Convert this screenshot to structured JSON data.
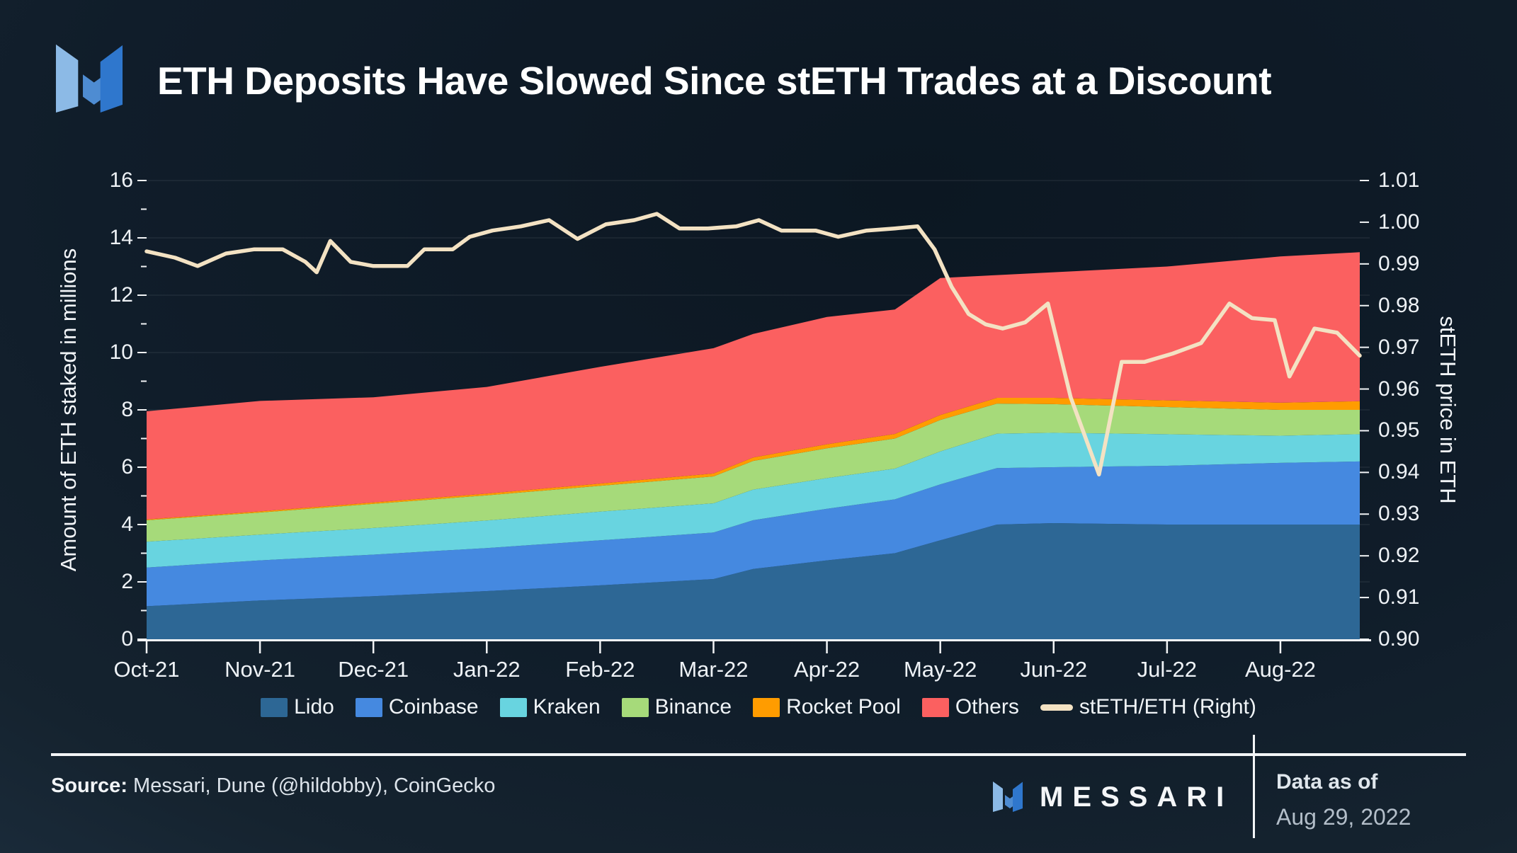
{
  "header": {
    "title": "ETH Deposits Have Slowed Since stETH Trades at a Discount"
  },
  "chart_data": {
    "type": "area",
    "stacking": "stacked",
    "title": "ETH Deposits Have Slowed Since stETH Trades at a Discount",
    "grid": "horizontal-only",
    "legend_position": "bottom",
    "left_axis": {
      "title": "Amount of ETH staked in millions",
      "ticks": [
        0,
        2,
        4,
        6,
        8,
        10,
        12,
        14,
        16
      ],
      "range": [
        0,
        16
      ]
    },
    "right_axis": {
      "title": "stETH price in ETH",
      "ticks": [
        0.9,
        0.91,
        0.92,
        0.93,
        0.94,
        0.95,
        0.96,
        0.97,
        0.98,
        0.99,
        1.0,
        1.01
      ],
      "range": [
        0.9,
        1.01
      ]
    },
    "x_axis": {
      "tick_months": [
        0,
        1,
        2,
        3,
        4,
        5,
        6,
        7,
        8,
        9,
        10
      ],
      "tick_labels": [
        "Oct-21",
        "Nov-21",
        "Dec-21",
        "Jan-22",
        "Feb-22",
        "Mar-22",
        "Apr-22",
        "May-22",
        "Jun-22",
        "Jul-22",
        "Aug-22"
      ],
      "months_span": 10.7
    },
    "x_months": [
      0,
      1,
      2,
      3,
      4,
      5,
      5.35,
      6,
      6.6,
      7,
      7.5,
      8,
      9,
      10,
      10.7
    ],
    "series": [
      {
        "name": "Lido",
        "color": "#2d6795",
        "values": [
          1.15,
          1.35,
          1.5,
          1.68,
          1.88,
          2.1,
          2.45,
          2.75,
          3.0,
          3.45,
          4.0,
          4.05,
          4.0,
          4.0,
          4.0
        ]
      },
      {
        "name": "Coinbase",
        "color": "#4589e0",
        "values": [
          1.35,
          1.4,
          1.45,
          1.5,
          1.57,
          1.62,
          1.7,
          1.8,
          1.88,
          1.95,
          1.97,
          1.95,
          2.05,
          2.15,
          2.2
        ]
      },
      {
        "name": "Kraken",
        "color": "#68d4e0",
        "values": [
          0.9,
          0.9,
          0.93,
          0.96,
          1.0,
          1.02,
          1.07,
          1.07,
          1.07,
          1.15,
          1.2,
          1.2,
          1.1,
          0.95,
          0.95
        ]
      },
      {
        "name": "Binance",
        "color": "#a6da7a",
        "values": [
          0.75,
          0.77,
          0.84,
          0.88,
          0.9,
          0.94,
          1.0,
          1.04,
          1.05,
          1.1,
          1.05,
          1.0,
          0.95,
          0.9,
          0.85
        ]
      },
      {
        "name": "Rocket Pool",
        "color": "#ff9c00",
        "values": [
          0.03,
          0.04,
          0.05,
          0.06,
          0.08,
          0.1,
          0.12,
          0.14,
          0.16,
          0.17,
          0.2,
          0.22,
          0.23,
          0.25,
          0.3
        ]
      },
      {
        "name": "Others",
        "color": "#fb6060",
        "values": [
          3.77,
          3.85,
          3.67,
          3.72,
          4.07,
          4.37,
          4.31,
          4.44,
          4.34,
          4.78,
          4.28,
          4.38,
          4.67,
          5.1,
          5.2
        ]
      }
    ],
    "line": {
      "name": "stETH/ETH (Right)",
      "color": "#f3e2c3",
      "axis": "right",
      "points": [
        [
          0,
          0.993
        ],
        [
          0.25,
          0.9915
        ],
        [
          0.45,
          0.9895
        ],
        [
          0.7,
          0.9925
        ],
        [
          0.95,
          0.9935
        ],
        [
          1.2,
          0.9935
        ],
        [
          1.4,
          0.9905
        ],
        [
          1.5,
          0.988
        ],
        [
          1.62,
          0.9955
        ],
        [
          1.8,
          0.9905
        ],
        [
          2.0,
          0.9895
        ],
        [
          2.3,
          0.9895
        ],
        [
          2.45,
          0.9935
        ],
        [
          2.7,
          0.9935
        ],
        [
          2.85,
          0.9965
        ],
        [
          3.05,
          0.998
        ],
        [
          3.3,
          0.999
        ],
        [
          3.55,
          1.0005
        ],
        [
          3.8,
          0.996
        ],
        [
          4.05,
          0.9995
        ],
        [
          4.3,
          1.0005
        ],
        [
          4.5,
          1.002
        ],
        [
          4.7,
          0.9985
        ],
        [
          4.95,
          0.9985
        ],
        [
          5.2,
          0.999
        ],
        [
          5.4,
          1.0005
        ],
        [
          5.6,
          0.998
        ],
        [
          5.9,
          0.998
        ],
        [
          6.1,
          0.9965
        ],
        [
          6.35,
          0.998
        ],
        [
          6.6,
          0.9985
        ],
        [
          6.8,
          0.999
        ],
        [
          6.95,
          0.9935
        ],
        [
          7.1,
          0.9845
        ],
        [
          7.25,
          0.978
        ],
        [
          7.4,
          0.9755
        ],
        [
          7.55,
          0.9745
        ],
        [
          7.75,
          0.976
        ],
        [
          7.95,
          0.9805
        ],
        [
          8.15,
          0.958
        ],
        [
          8.4,
          0.9395
        ],
        [
          8.6,
          0.9665
        ],
        [
          8.8,
          0.9665
        ],
        [
          9.05,
          0.9685
        ],
        [
          9.3,
          0.971
        ],
        [
          9.55,
          0.9805
        ],
        [
          9.75,
          0.977
        ],
        [
          9.95,
          0.9765
        ],
        [
          10.08,
          0.963
        ],
        [
          10.3,
          0.9745
        ],
        [
          10.5,
          0.9735
        ],
        [
          10.7,
          0.968
        ]
      ]
    }
  },
  "legend": {
    "items": [
      {
        "label": "Lido",
        "color": "#2d6795",
        "swatch": "area"
      },
      {
        "label": "Coinbase",
        "color": "#4589e0",
        "swatch": "area"
      },
      {
        "label": "Kraken",
        "color": "#68d4e0",
        "swatch": "area"
      },
      {
        "label": "Binance",
        "color": "#a6da7a",
        "swatch": "area"
      },
      {
        "label": "Rocket Pool",
        "color": "#ff9c00",
        "swatch": "area"
      },
      {
        "label": "Others",
        "color": "#fb6060",
        "swatch": "area"
      },
      {
        "label": "stETH/ETH (Right)",
        "color": "#f3e2c3",
        "swatch": "line"
      }
    ]
  },
  "footer": {
    "source_label": "Source:",
    "source_text": " Messari, Dune (@hildobby), CoinGecko",
    "brand": "MESSARI",
    "data_as_of_label": "Data as of",
    "data_as_of_date": "Aug 29, 2022"
  },
  "colors": {
    "background_dark": "#0c1722",
    "background_edge": "#2e4254",
    "text": "#ffffff",
    "axis": "#f2f4f6",
    "gridline": "rgba(255,255,255,0.09)"
  }
}
